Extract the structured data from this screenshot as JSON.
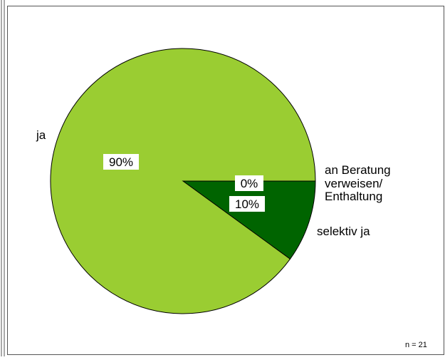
{
  "chart_data": {
    "type": "pie",
    "slices": [
      {
        "name": "ja",
        "value": 90,
        "label": "90%",
        "color": "#9acd32"
      },
      {
        "name": "selektiv ja",
        "value": 10,
        "label": "10%",
        "color": "#006400"
      },
      {
        "name": "an Beratung verweisen/ Enthaltung",
        "value": 0,
        "label": "0%",
        "color": "#006400"
      }
    ],
    "category_labels": {
      "ja": "ja",
      "selektiv_ja": "selektiv ja",
      "beratung_line1": "an Beratung",
      "beratung_line2": "verweisen/",
      "beratung_line3": "Enthaltung"
    },
    "n_label": "n = 21",
    "legend": "none"
  }
}
